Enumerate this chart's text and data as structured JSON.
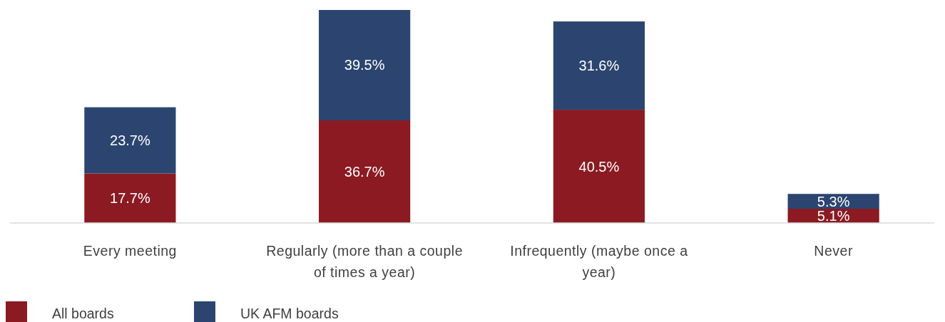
{
  "chart_data": {
    "type": "bar",
    "stacked": true,
    "categories": [
      "Every meeting",
      "Regularly (more than a couple of times a year)",
      "Infrequently (maybe once a year)",
      "Never"
    ],
    "series": [
      {
        "name": "All boards",
        "color": "#8b1a22",
        "values": [
          17.7,
          36.7,
          40.5,
          5.1
        ],
        "value_labels": [
          "17.7%",
          "36.7%",
          "40.5%",
          "5.1%"
        ]
      },
      {
        "name": "UK AFM boards",
        "color": "#2c4570",
        "values": [
          23.7,
          39.5,
          31.6,
          5.3
        ],
        "value_labels": [
          "23.7%",
          "39.5%",
          "31.6%",
          "5.3%"
        ]
      }
    ],
    "legend": "bottom left"
  }
}
